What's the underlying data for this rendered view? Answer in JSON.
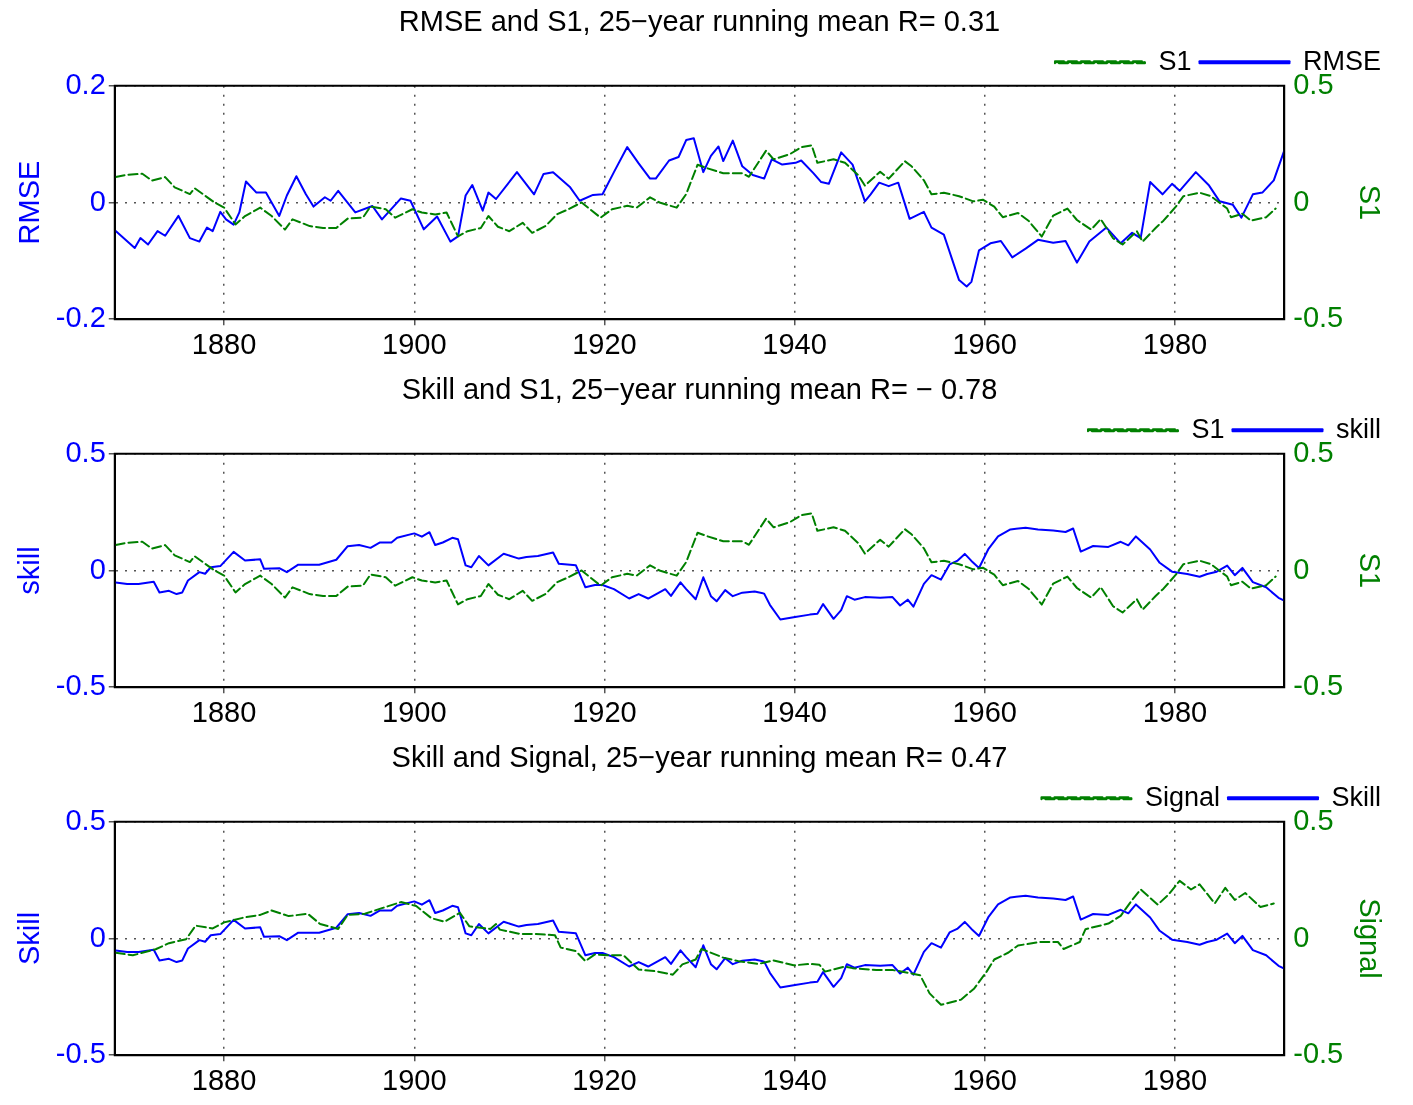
{
  "chart_data": [
    {
      "type": "line",
      "title": "RMSE and S1, 25−year running mean R= 0.31",
      "ylabel": "RMSE",
      "y2label": "S1",
      "xlim": [
        1868.5,
        1991.5
      ],
      "xticks": [
        1880,
        1900,
        1920,
        1940,
        1960,
        1980
      ],
      "ylim": [
        -0.2,
        0.2
      ],
      "yticks": [
        -0.2,
        0,
        0.2
      ],
      "y2lim": [
        -0.5,
        0.5
      ],
      "y2ticks": [
        -0.5,
        0,
        0.5
      ],
      "grid": true,
      "legend": "top right",
      "marker": "none",
      "series": [
        {
          "name": "S1",
          "color": "#008000",
          "axis": "y2",
          "line_style": "dashed",
          "x": [
            1868.6,
            1869.8,
            1871.4,
            1872.4,
            1873.8,
            1874.8,
            1876.4,
            1876.9,
            1879,
            1880,
            1881.2,
            1882.2,
            1883.8,
            1885,
            1886.4,
            1887.2,
            1889,
            1890.4,
            1891.8,
            1893,
            1894.6,
            1895.4,
            1897,
            1898,
            1899.8,
            1900.8,
            1902.2,
            1903.4,
            1904.6,
            1905.6,
            1907,
            1907.8,
            1908.8,
            1910,
            1911.4,
            1912.4,
            1913.8,
            1915,
            1916.2,
            1917.6,
            1919.6,
            1920.8,
            1922.4,
            1923.4,
            1924.8,
            1925.8,
            1927.6,
            1928.6,
            1929.8,
            1930.8,
            1932.5,
            1934.5,
            1935.2,
            1937,
            1937.8,
            1939.5,
            1940.7,
            1941.8,
            1942.4,
            1944.1,
            1945.3,
            1946.7,
            1947.4,
            1949,
            1949.9,
            1951.6,
            1952.3,
            1953.6,
            1954.4,
            1955.7,
            1957.3,
            1958.8,
            1959.8,
            1961,
            1961.9,
            1963.5,
            1964.6,
            1966,
            1967.2,
            1968.7,
            1969.7,
            1971.2,
            1972.2,
            1973.5,
            1974.5,
            1976,
            1976.6,
            1978,
            1978.8,
            1980.1,
            1980.9,
            1982.6,
            1983.8,
            1985.5,
            1985.9,
            1987.1,
            1988,
            1989.6,
            1990.6
          ],
          "values": [
            0.109,
            0.119,
            0.123,
            0.094,
            0.109,
            0.065,
            0.036,
            0.061,
            0,
            -0.022,
            -0.094,
            -0.058,
            -0.022,
            -0.058,
            -0.116,
            -0.072,
            -0.101,
            -0.109,
            -0.109,
            -0.069,
            -0.065,
            -0.017,
            -0.029,
            -0.065,
            -0.029,
            -0.043,
            -0.051,
            -0.043,
            -0.145,
            -0.123,
            -0.109,
            -0.058,
            -0.104,
            -0.123,
            -0.087,
            -0.13,
            -0.101,
            -0.051,
            -0.029,
            0,
            -0.065,
            -0.029,
            -0.014,
            -0.022,
            0.022,
            0,
            -0.022,
            0.036,
            0.162,
            0.147,
            0.125,
            0.125,
            0.11,
            0.222,
            0.185,
            0.207,
            0.237,
            0.245,
            0.17,
            0.185,
            0.17,
            0.117,
            0.072,
            0.132,
            0.102,
            0.177,
            0.155,
            0.095,
            0.035,
            0.042,
            0.027,
            0.005,
            0.012,
            -0.018,
            -0.063,
            -0.045,
            -0.078,
            -0.146,
            -0.056,
            -0.026,
            -0.075,
            -0.116,
            -0.071,
            -0.153,
            -0.18,
            -0.123,
            -0.168,
            -0.108,
            -0.078,
            -0.018,
            0.027,
            0.042,
            0.027,
            -0.026,
            -0.063,
            -0.048,
            -0.078,
            -0.063,
            -0.026
          ]
        },
        {
          "name": "RMSE",
          "color": "#0000ff",
          "line_style": "solid",
          "x": [
            1868.6,
            1870.6,
            1871.2,
            1872,
            1873,
            1873.8,
            1875.2,
            1876.4,
            1877.4,
            1878.2,
            1878.8,
            1879.6,
            1880.2,
            1881,
            1881.6,
            1882.3,
            1883.4,
            1884.4,
            1885.8,
            1886.6,
            1887.6,
            1888.6,
            1889.4,
            1890.6,
            1891.2,
            1892,
            1893.8,
            1895.6,
            1896.6,
            1898.6,
            1899.6,
            1901,
            1902.4,
            1903.8,
            1904.6,
            1905.4,
            1906.1,
            1907.2,
            1907.8,
            1908.6,
            1910.8,
            1912.6,
            1913.6,
            1914.6,
            1916.4,
            1917.4,
            1918.8,
            1919.8,
            1921,
            1922.4,
            1923.6,
            1924.8,
            1925.4,
            1926.8,
            1927.8,
            1928.6,
            1929.4,
            1930.4,
            1931.2,
            1932,
            1932.5,
            1933.5,
            1934.5,
            1935.6,
            1936.8,
            1937.6,
            1938.7,
            1940.1,
            1940.7,
            1942,
            1942.8,
            1943.6,
            1944.9,
            1946.1,
            1947.4,
            1948,
            1948.9,
            1949.9,
            1950.9,
            1952.1,
            1953.6,
            1954.4,
            1955.7,
            1956.5,
            1957.3,
            1958.1,
            1958.6,
            1959.4,
            1960.6,
            1961.7,
            1962.9,
            1964.3,
            1965.6,
            1967.2,
            1968.5,
            1969.7,
            1971,
            1972.8,
            1974.3,
            1975.5,
            1976.4,
            1977.4,
            1978.7,
            1979.7,
            1980.5,
            1982.2,
            1983.6,
            1984.7,
            1986.1,
            1987,
            1988.2,
            1989.2,
            1990.4,
            1991.5
          ],
          "values": [
            -0.049,
            -0.078,
            -0.061,
            -0.072,
            -0.049,
            -0.057,
            -0.023,
            -0.061,
            -0.067,
            -0.043,
            -0.049,
            -0.016,
            -0.029,
            -0.038,
            -0.017,
            0.036,
            0.017,
            0.017,
            -0.023,
            0.012,
            0.045,
            0.014,
            -0.007,
            0.009,
            0.003,
            0.02,
            -0.017,
            -0.006,
            -0.029,
            0.007,
            0.003,
            -0.046,
            -0.024,
            -0.067,
            -0.058,
            0.012,
            0.03,
            -0.014,
            0.017,
            0.006,
            0.052,
            0.014,
            0.049,
            0.052,
            0.026,
            0.003,
            0.013,
            0.014,
            0.052,
            0.095,
            0.067,
            0.041,
            0.041,
            0.072,
            0.078,
            0.107,
            0.11,
            0.052,
            0.08,
            0.096,
            0.071,
            0.106,
            0.062,
            0.047,
            0.041,
            0.074,
            0.065,
            0.068,
            0.072,
            0.05,
            0.035,
            0.032,
            0.086,
            0.065,
            0.002,
            0.014,
            0.034,
            0.028,
            0.034,
            -0.028,
            -0.016,
            -0.043,
            -0.055,
            -0.094,
            -0.133,
            -0.144,
            -0.136,
            -0.082,
            -0.07,
            -0.066,
            -0.094,
            -0.079,
            -0.064,
            -0.069,
            -0.066,
            -0.103,
            -0.067,
            -0.043,
            -0.07,
            -0.052,
            -0.061,
            0.035,
            0.014,
            0.032,
            0.02,
            0.052,
            0.029,
            0.002,
            -0.004,
            -0.026,
            0.014,
            0.017,
            0.038,
            0.089
          ]
        }
      ]
    },
    {
      "type": "line",
      "title": "Skill and S1, 25−year running mean R= − 0.78",
      "ylabel": "skill",
      "y2label": "S1",
      "xlim": [
        1868.5,
        1991.5
      ],
      "xticks": [
        1880,
        1900,
        1920,
        1940,
        1960,
        1980
      ],
      "ylim": [
        -0.5,
        0.5
      ],
      "yticks": [
        -0.5,
        0,
        0.5
      ],
      "y2lim": [
        -0.5,
        0.5
      ],
      "y2ticks": [
        -0.5,
        0,
        0.5
      ],
      "grid": true,
      "legend": "top right",
      "marker": "none",
      "series": [
        {
          "name": "S1",
          "color": "#008000",
          "axis": "y2",
          "line_style": "dashed",
          "x": [
            1868.6,
            1869.8,
            1871.4,
            1872.4,
            1873.8,
            1874.8,
            1876.4,
            1876.9,
            1879,
            1880,
            1881.2,
            1882.2,
            1883.8,
            1885,
            1886.4,
            1887.2,
            1889,
            1890.4,
            1891.8,
            1893,
            1894.6,
            1895.4,
            1897,
            1898,
            1899.8,
            1900.8,
            1902.2,
            1903.4,
            1904.6,
            1905.6,
            1907,
            1907.8,
            1908.8,
            1910,
            1911.4,
            1912.4,
            1913.8,
            1915,
            1916.2,
            1917.6,
            1919.6,
            1920.8,
            1922.4,
            1923.4,
            1924.8,
            1925.8,
            1927.6,
            1928.6,
            1929.8,
            1930.8,
            1932.5,
            1934.5,
            1935.2,
            1937,
            1937.8,
            1939.5,
            1940.7,
            1941.8,
            1942.4,
            1944.1,
            1945.3,
            1946.7,
            1947.4,
            1949,
            1949.9,
            1951.6,
            1952.3,
            1953.6,
            1954.4,
            1955.7,
            1957.3,
            1958.8,
            1959.8,
            1961,
            1961.9,
            1963.5,
            1964.6,
            1966,
            1967.2,
            1968.7,
            1969.7,
            1971.2,
            1972.2,
            1973.5,
            1974.5,
            1976,
            1976.6,
            1978,
            1978.8,
            1980.1,
            1980.9,
            1982.6,
            1983.8,
            1985.5,
            1985.9,
            1987.1,
            1988,
            1989.6,
            1990.6
          ],
          "values": [
            0.109,
            0.119,
            0.123,
            0.094,
            0.109,
            0.065,
            0.036,
            0.061,
            0,
            -0.022,
            -0.094,
            -0.058,
            -0.022,
            -0.058,
            -0.116,
            -0.072,
            -0.101,
            -0.109,
            -0.109,
            -0.069,
            -0.065,
            -0.017,
            -0.029,
            -0.065,
            -0.029,
            -0.043,
            -0.051,
            -0.043,
            -0.145,
            -0.123,
            -0.109,
            -0.058,
            -0.104,
            -0.123,
            -0.087,
            -0.13,
            -0.101,
            -0.051,
            -0.029,
            0,
            -0.065,
            -0.029,
            -0.014,
            -0.022,
            0.022,
            0,
            -0.022,
            0.036,
            0.162,
            0.147,
            0.125,
            0.125,
            0.11,
            0.222,
            0.185,
            0.207,
            0.237,
            0.245,
            0.17,
            0.185,
            0.17,
            0.117,
            0.072,
            0.132,
            0.102,
            0.177,
            0.155,
            0.095,
            0.035,
            0.042,
            0.027,
            0.005,
            0.012,
            -0.018,
            -0.063,
            -0.045,
            -0.078,
            -0.146,
            -0.056,
            -0.026,
            -0.075,
            -0.116,
            -0.071,
            -0.153,
            -0.18,
            -0.123,
            -0.168,
            -0.108,
            -0.078,
            -0.018,
            0.027,
            0.042,
            0.027,
            -0.026,
            -0.063,
            -0.048,
            -0.078,
            -0.063,
            -0.026
          ]
        },
        {
          "name": "skill",
          "color": "#0000ff",
          "line_style": "solid",
          "x": [
            1868.6,
            1869.8,
            1871,
            1872.6,
            1873.2,
            1874.2,
            1875,
            1875.6,
            1876.2,
            1877.4,
            1878,
            1878.6,
            1879.6,
            1881,
            1882.2,
            1883.8,
            1884.2,
            1885.8,
            1886.6,
            1887.8,
            1890,
            1891.8,
            1893,
            1894.2,
            1895.4,
            1896.4,
            1897.6,
            1898.2,
            1900,
            1900.8,
            1901.6,
            1902.2,
            1903,
            1904,
            1904.6,
            1905.4,
            1906,
            1906.8,
            1907.8,
            1909.4,
            1911,
            1911.8,
            1913,
            1914.6,
            1915.2,
            1917,
            1918,
            1919,
            1919.8,
            1921,
            1922.6,
            1923.6,
            1924.6,
            1926.4,
            1927,
            1928,
            1928.6,
            1929.6,
            1930.4,
            1931.2,
            1931.8,
            1932.7,
            1933.5,
            1934.5,
            1935.8,
            1936.8,
            1937.4,
            1938.5,
            1939.9,
            1941.6,
            1942.4,
            1943,
            1944.1,
            1944.9,
            1945.5,
            1946.3,
            1947.4,
            1949,
            1950.3,
            1951.1,
            1951.9,
            1952.5,
            1953.6,
            1954.4,
            1955.4,
            1956.3,
            1957.1,
            1957.9,
            1958.6,
            1959.4,
            1960.4,
            1961.4,
            1962.7,
            1964.3,
            1965.6,
            1967.2,
            1968.5,
            1969.3,
            1970.1,
            1971.4,
            1973,
            1974.3,
            1975.1,
            1975.9,
            1977.4,
            1978.4,
            1979.7,
            1981.3,
            1982.6,
            1983.4,
            1984.4,
            1985.5,
            1986.3,
            1987.1,
            1988.2,
            1989.6,
            1990.9,
            1991.5
          ],
          "values": [
            -0.051,
            -0.058,
            -0.058,
            -0.048,
            -0.094,
            -0.087,
            -0.101,
            -0.094,
            -0.043,
            -0.007,
            -0.014,
            0.014,
            0.019,
            0.08,
            0.043,
            0.048,
            0.007,
            0.01,
            -0.007,
            0.025,
            0.025,
            0.046,
            0.104,
            0.109,
            0.097,
            0.12,
            0.12,
            0.14,
            0.159,
            0.145,
            0.164,
            0.109,
            0.12,
            0.14,
            0.134,
            0.022,
            0.014,
            0.062,
            0.022,
            0.072,
            0.051,
            0.058,
            0.062,
            0.077,
            0.029,
            0.022,
            -0.072,
            -0.062,
            -0.062,
            -0.08,
            -0.12,
            -0.101,
            -0.12,
            -0.08,
            -0.109,
            -0.051,
            -0.08,
            -0.123,
            -0.029,
            -0.11,
            -0.132,
            -0.084,
            -0.11,
            -0.095,
            -0.09,
            -0.099,
            -0.147,
            -0.21,
            -0.2,
            -0.189,
            -0.185,
            -0.144,
            -0.207,
            -0.17,
            -0.11,
            -0.125,
            -0.114,
            -0.117,
            -0.114,
            -0.15,
            -0.125,
            -0.155,
            -0.057,
            -0.02,
            -0.039,
            0.026,
            0.041,
            0.071,
            0.041,
            0.011,
            0.093,
            0.146,
            0.176,
            0.183,
            0.176,
            0.171,
            0.165,
            0.18,
            0.081,
            0.105,
            0.101,
            0.123,
            0.108,
            0.146,
            0.09,
            0.033,
            -0.005,
            -0.015,
            -0.027,
            -0.015,
            -0.005,
            0.021,
            -0.02,
            0.011,
            -0.05,
            -0.072,
            -0.117,
            -0.129
          ]
        }
      ]
    },
    {
      "type": "line",
      "title": "Skill and Signal, 25−year running mean R= 0.47",
      "ylabel": "Skill",
      "y2label": "Signal",
      "xlim": [
        1868.5,
        1991.5
      ],
      "xticks": [
        1880,
        1900,
        1920,
        1940,
        1960,
        1980
      ],
      "ylim": [
        -0.5,
        0.5
      ],
      "yticks": [
        -0.5,
        0,
        0.5
      ],
      "y2lim": [
        -0.5,
        0.5
      ],
      "y2ticks": [
        -0.5,
        0,
        0.5
      ],
      "grid": true,
      "legend": "top right",
      "marker": "none",
      "series": [
        {
          "name": "Signal",
          "color": "#008000",
          "axis": "y2",
          "line_style": "dashed",
          "x": [
            1868.6,
            1870.4,
            1872.8,
            1874.2,
            1876,
            1877,
            1878.8,
            1880,
            1882.2,
            1883.8,
            1885,
            1886.8,
            1888.8,
            1890.1,
            1892,
            1893,
            1894.8,
            1896.6,
            1898.6,
            1900.2,
            1901.8,
            1903.2,
            1904.8,
            1905.8,
            1908,
            1908.6,
            1909,
            1911.2,
            1912.8,
            1914.8,
            1915.4,
            1917,
            1918,
            1919,
            1920.4,
            1922,
            1923.6,
            1925.4,
            1927.2,
            1928.2,
            1929.6,
            1930.2,
            1932.5,
            1934.1,
            1936.2,
            1937.8,
            1939.9,
            1941.6,
            1942.6,
            1943.2,
            1945.3,
            1946.1,
            1948.6,
            1950.3,
            1950.9,
            1953.2,
            1954.2,
            1955.4,
            1957.5,
            1958.9,
            1960.2,
            1961,
            1962.5,
            1963.5,
            1965.8,
            1967.7,
            1968.3,
            1970,
            1970.6,
            1973,
            1974.3,
            1975.5,
            1976.4,
            1978.2,
            1979.3,
            1980.5,
            1981.7,
            1982.6,
            1984.2,
            1985.3,
            1986.3,
            1987.4,
            1989,
            1990.4
          ],
          "values": [
            -0.061,
            -0.072,
            -0.046,
            -0.02,
            -0.003,
            0.055,
            0.043,
            0.069,
            0.091,
            0.101,
            0.12,
            0.096,
            0.106,
            0.062,
            0.041,
            0.101,
            0.106,
            0.13,
            0.156,
            0.139,
            0.087,
            0.072,
            0.11,
            0.052,
            0.041,
            0.062,
            0.038,
            0.019,
            0.019,
            0.014,
            -0.039,
            -0.054,
            -0.097,
            -0.068,
            -0.072,
            -0.072,
            -0.133,
            -0.14,
            -0.155,
            -0.111,
            -0.09,
            -0.045,
            -0.082,
            -0.097,
            -0.109,
            -0.094,
            -0.115,
            -0.109,
            -0.112,
            -0.142,
            -0.12,
            -0.127,
            -0.135,
            -0.135,
            -0.139,
            -0.157,
            -0.235,
            -0.284,
            -0.262,
            -0.214,
            -0.142,
            -0.09,
            -0.06,
            -0.03,
            -0.015,
            -0.015,
            -0.045,
            -0.015,
            0.04,
            0.064,
            0.097,
            0.165,
            0.21,
            0.145,
            0.187,
            0.247,
            0.21,
            0.232,
            0.15,
            0.217,
            0.165,
            0.195,
            0.135,
            0.15
          ]
        },
        {
          "name": "Skill",
          "color": "#0000ff",
          "line_style": "solid",
          "x": [
            1868.6,
            1869.8,
            1871,
            1872.6,
            1873.2,
            1874.2,
            1875,
            1875.6,
            1876.2,
            1877.4,
            1878,
            1878.6,
            1879.6,
            1881,
            1882.2,
            1883.8,
            1884.2,
            1885.8,
            1886.6,
            1887.8,
            1890,
            1891.8,
            1893,
            1894.2,
            1895.4,
            1896.4,
            1897.6,
            1898.2,
            1900,
            1900.8,
            1901.6,
            1902.2,
            1903,
            1904,
            1904.6,
            1905.4,
            1906,
            1906.8,
            1907.8,
            1909.4,
            1911,
            1911.8,
            1913,
            1914.6,
            1915.2,
            1917,
            1918,
            1919,
            1919.8,
            1921,
            1922.6,
            1923.6,
            1924.6,
            1926.4,
            1927,
            1928,
            1928.6,
            1929.6,
            1930.4,
            1931.2,
            1931.8,
            1932.7,
            1933.5,
            1934.5,
            1935.8,
            1936.8,
            1937.4,
            1938.5,
            1939.9,
            1941.6,
            1942.4,
            1943,
            1944.1,
            1944.9,
            1945.5,
            1946.3,
            1947.4,
            1949,
            1950.3,
            1951.1,
            1951.9,
            1952.5,
            1953.6,
            1954.4,
            1955.4,
            1956.3,
            1957.1,
            1957.9,
            1958.6,
            1959.4,
            1960.4,
            1961.4,
            1962.7,
            1964.3,
            1965.6,
            1967.2,
            1968.5,
            1969.3,
            1970.1,
            1971.4,
            1973,
            1974.3,
            1975.1,
            1975.9,
            1977.4,
            1978.4,
            1979.7,
            1981.3,
            1982.6,
            1983.4,
            1984.4,
            1985.5,
            1986.3,
            1987.1,
            1988.2,
            1989.6,
            1990.9,
            1991.5
          ],
          "values": [
            -0.051,
            -0.058,
            -0.058,
            -0.048,
            -0.094,
            -0.087,
            -0.101,
            -0.094,
            -0.043,
            -0.007,
            -0.014,
            0.014,
            0.019,
            0.08,
            0.043,
            0.048,
            0.007,
            0.01,
            -0.007,
            0.025,
            0.025,
            0.046,
            0.104,
            0.109,
            0.097,
            0.12,
            0.12,
            0.14,
            0.159,
            0.145,
            0.164,
            0.109,
            0.12,
            0.14,
            0.134,
            0.022,
            0.014,
            0.062,
            0.022,
            0.072,
            0.051,
            0.058,
            0.062,
            0.077,
            0.029,
            0.022,
            -0.072,
            -0.062,
            -0.062,
            -0.08,
            -0.12,
            -0.101,
            -0.12,
            -0.08,
            -0.109,
            -0.051,
            -0.08,
            -0.123,
            -0.029,
            -0.11,
            -0.132,
            -0.084,
            -0.11,
            -0.095,
            -0.09,
            -0.099,
            -0.147,
            -0.21,
            -0.2,
            -0.189,
            -0.185,
            -0.144,
            -0.207,
            -0.17,
            -0.11,
            -0.125,
            -0.114,
            -0.117,
            -0.114,
            -0.15,
            -0.125,
            -0.155,
            -0.057,
            -0.02,
            -0.039,
            0.026,
            0.041,
            0.071,
            0.041,
            0.011,
            0.093,
            0.146,
            0.176,
            0.183,
            0.176,
            0.171,
            0.165,
            0.18,
            0.081,
            0.105,
            0.101,
            0.123,
            0.108,
            0.146,
            0.09,
            0.033,
            -0.005,
            -0.015,
            -0.027,
            -0.015,
            -0.005,
            0.021,
            -0.02,
            0.011,
            -0.05,
            -0.072,
            -0.117,
            -0.129
          ]
        }
      ]
    }
  ]
}
